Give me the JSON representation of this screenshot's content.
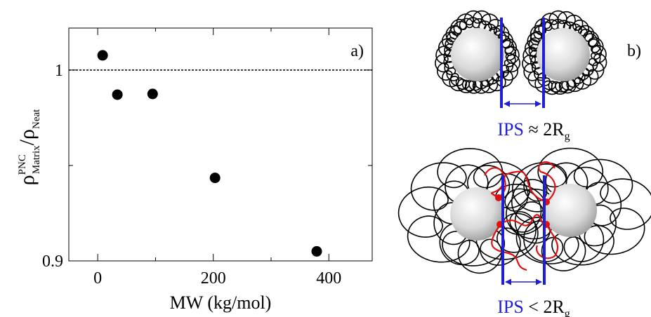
{
  "chart_data": {
    "type": "scatter",
    "panel_label": "a)",
    "xlabel": "MW (kg/mol)",
    "ylabel": {
      "rho": "ρ",
      "sup": "PNC",
      "sub": "Matrix",
      "slash": "/ρ",
      "sub2": "Neat"
    },
    "x": [
      8.5,
      34,
      95,
      203,
      379
    ],
    "values": [
      1.0077,
      0.9871,
      0.9875,
      0.9435,
      0.905
    ],
    "color": "#000000",
    "xlim": [
      -50,
      475
    ],
    "xticks": [
      0,
      200,
      400
    ],
    "xminor": [
      100,
      300
    ],
    "ylim": [
      0.9,
      1.022
    ],
    "yticks": [
      0.9,
      1
    ],
    "yminor": [
      0.95
    ],
    "hline": 1
  },
  "schematic": {
    "panel_label": "b)",
    "top_caption": {
      "ips": "IPS",
      "rest": " ≈ 2R",
      "sub": "g"
    },
    "bottom_caption": {
      "ips": "IPS",
      "rest": " < 2R",
      "sub": "g"
    }
  }
}
